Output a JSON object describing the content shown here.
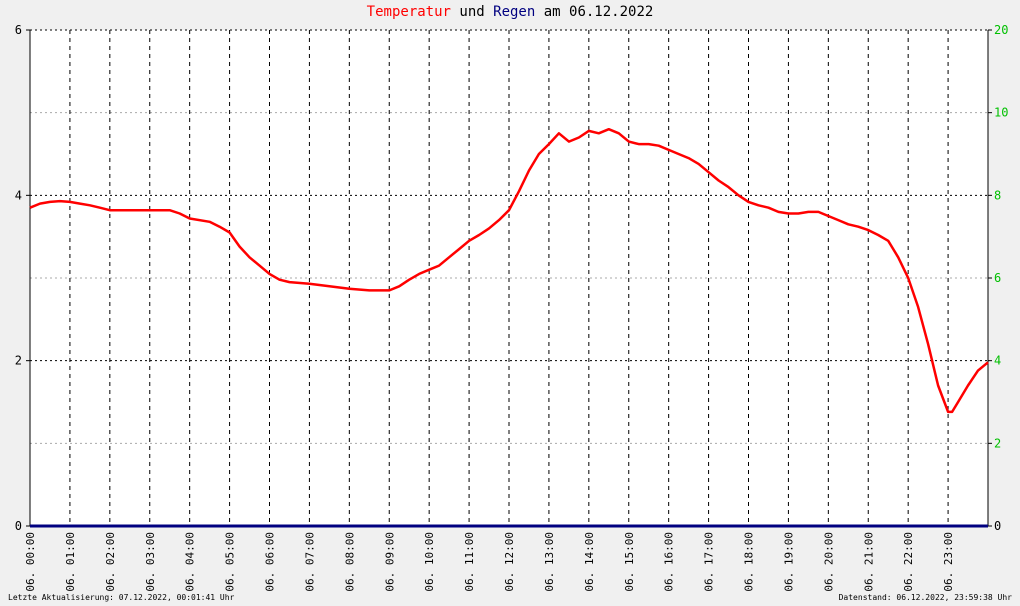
{
  "title": {
    "part1": "Temperatur",
    "part2": "und",
    "part3": "Regen",
    "part4": "am 06.12.2022",
    "color1": "#ff0000",
    "color3": "#000080"
  },
  "footer": {
    "left": "Letzte Aktualisierung: 07.12.2022, 00:01:41 Uhr",
    "right": "Datenstand: 06.12.2022, 23:59:38 Uhr"
  },
  "chart_data": {
    "type": "line",
    "xlabels": [
      "06. 00:00",
      "06. 01:00",
      "06. 02:00",
      "06. 03:00",
      "06. 04:00",
      "06. 05:00",
      "06. 06:00",
      "06. 07:00",
      "06. 08:00",
      "06. 09:00",
      "06. 10:00",
      "06. 11:00",
      "06. 12:00",
      "06. 13:00",
      "06. 14:00",
      "06. 15:00",
      "06. 16:00",
      "06. 17:00",
      "06. 18:00",
      "06. 19:00",
      "06. 20:00",
      "06. 21:00",
      "06. 22:00",
      "06. 23:00"
    ],
    "xlim": [
      0,
      24
    ],
    "y_left": {
      "lim": [
        0,
        6
      ],
      "ticks": [
        0,
        2,
        4,
        6
      ],
      "color": "#000000"
    },
    "y_right": {
      "lim": [
        0,
        20
      ],
      "ticks": [
        "0",
        "2",
        "4",
        "6",
        "8",
        "10",
        "20"
      ],
      "color": "#00c000"
    },
    "grid": true,
    "series": [
      {
        "name": "Temperatur",
        "color": "#ff0000",
        "axis": "left",
        "points": [
          [
            0,
            3.85
          ],
          [
            0.25,
            3.9
          ],
          [
            0.5,
            3.92
          ],
          [
            0.75,
            3.93
          ],
          [
            1.0,
            3.92
          ],
          [
            1.25,
            3.9
          ],
          [
            1.5,
            3.88
          ],
          [
            1.75,
            3.85
          ],
          [
            2.0,
            3.82
          ],
          [
            2.5,
            3.82
          ],
          [
            3.0,
            3.82
          ],
          [
            3.5,
            3.82
          ],
          [
            3.75,
            3.78
          ],
          [
            4.0,
            3.72
          ],
          [
            4.5,
            3.68
          ],
          [
            4.75,
            3.62
          ],
          [
            5.0,
            3.55
          ],
          [
            5.25,
            3.38
          ],
          [
            5.5,
            3.25
          ],
          [
            5.75,
            3.15
          ],
          [
            6.0,
            3.05
          ],
          [
            6.25,
            2.98
          ],
          [
            6.5,
            2.95
          ],
          [
            7.0,
            2.93
          ],
          [
            7.5,
            2.9
          ],
          [
            8.0,
            2.87
          ],
          [
            8.5,
            2.85
          ],
          [
            9.0,
            2.85
          ],
          [
            9.25,
            2.9
          ],
          [
            9.5,
            2.98
          ],
          [
            9.75,
            3.05
          ],
          [
            10.0,
            3.1
          ],
          [
            10.25,
            3.15
          ],
          [
            10.5,
            3.25
          ],
          [
            10.75,
            3.35
          ],
          [
            11.0,
            3.45
          ],
          [
            11.25,
            3.52
          ],
          [
            11.5,
            3.6
          ],
          [
            11.75,
            3.7
          ],
          [
            12.0,
            3.82
          ],
          [
            12.25,
            4.05
          ],
          [
            12.5,
            4.3
          ],
          [
            12.75,
            4.5
          ],
          [
            13.0,
            4.62
          ],
          [
            13.25,
            4.75
          ],
          [
            13.5,
            4.65
          ],
          [
            13.75,
            4.7
          ],
          [
            14.0,
            4.78
          ],
          [
            14.25,
            4.75
          ],
          [
            14.5,
            4.8
          ],
          [
            14.75,
            4.75
          ],
          [
            15.0,
            4.65
          ],
          [
            15.25,
            4.62
          ],
          [
            15.5,
            4.62
          ],
          [
            15.75,
            4.6
          ],
          [
            16.0,
            4.55
          ],
          [
            16.25,
            4.5
          ],
          [
            16.5,
            4.45
          ],
          [
            16.75,
            4.38
          ],
          [
            17.0,
            4.28
          ],
          [
            17.25,
            4.18
          ],
          [
            17.5,
            4.1
          ],
          [
            17.75,
            4.0
          ],
          [
            18.0,
            3.92
          ],
          [
            18.25,
            3.88
          ],
          [
            18.5,
            3.85
          ],
          [
            18.75,
            3.8
          ],
          [
            19.0,
            3.78
          ],
          [
            19.25,
            3.78
          ],
          [
            19.5,
            3.8
          ],
          [
            19.75,
            3.8
          ],
          [
            20.0,
            3.75
          ],
          [
            20.25,
            3.7
          ],
          [
            20.5,
            3.65
          ],
          [
            20.75,
            3.62
          ],
          [
            21.0,
            3.58
          ],
          [
            21.25,
            3.52
          ],
          [
            21.5,
            3.45
          ],
          [
            21.75,
            3.25
          ],
          [
            22.0,
            3.0
          ],
          [
            22.25,
            2.65
          ],
          [
            22.5,
            2.2
          ],
          [
            22.75,
            1.7
          ],
          [
            23.0,
            1.38
          ],
          [
            23.1,
            1.38
          ],
          [
            23.25,
            1.5
          ],
          [
            23.5,
            1.7
          ],
          [
            23.75,
            1.88
          ],
          [
            24.0,
            1.98
          ]
        ]
      },
      {
        "name": "Regen",
        "color": "#000080",
        "axis": "right",
        "points": [
          [
            0,
            0
          ],
          [
            24,
            0
          ]
        ]
      }
    ]
  }
}
